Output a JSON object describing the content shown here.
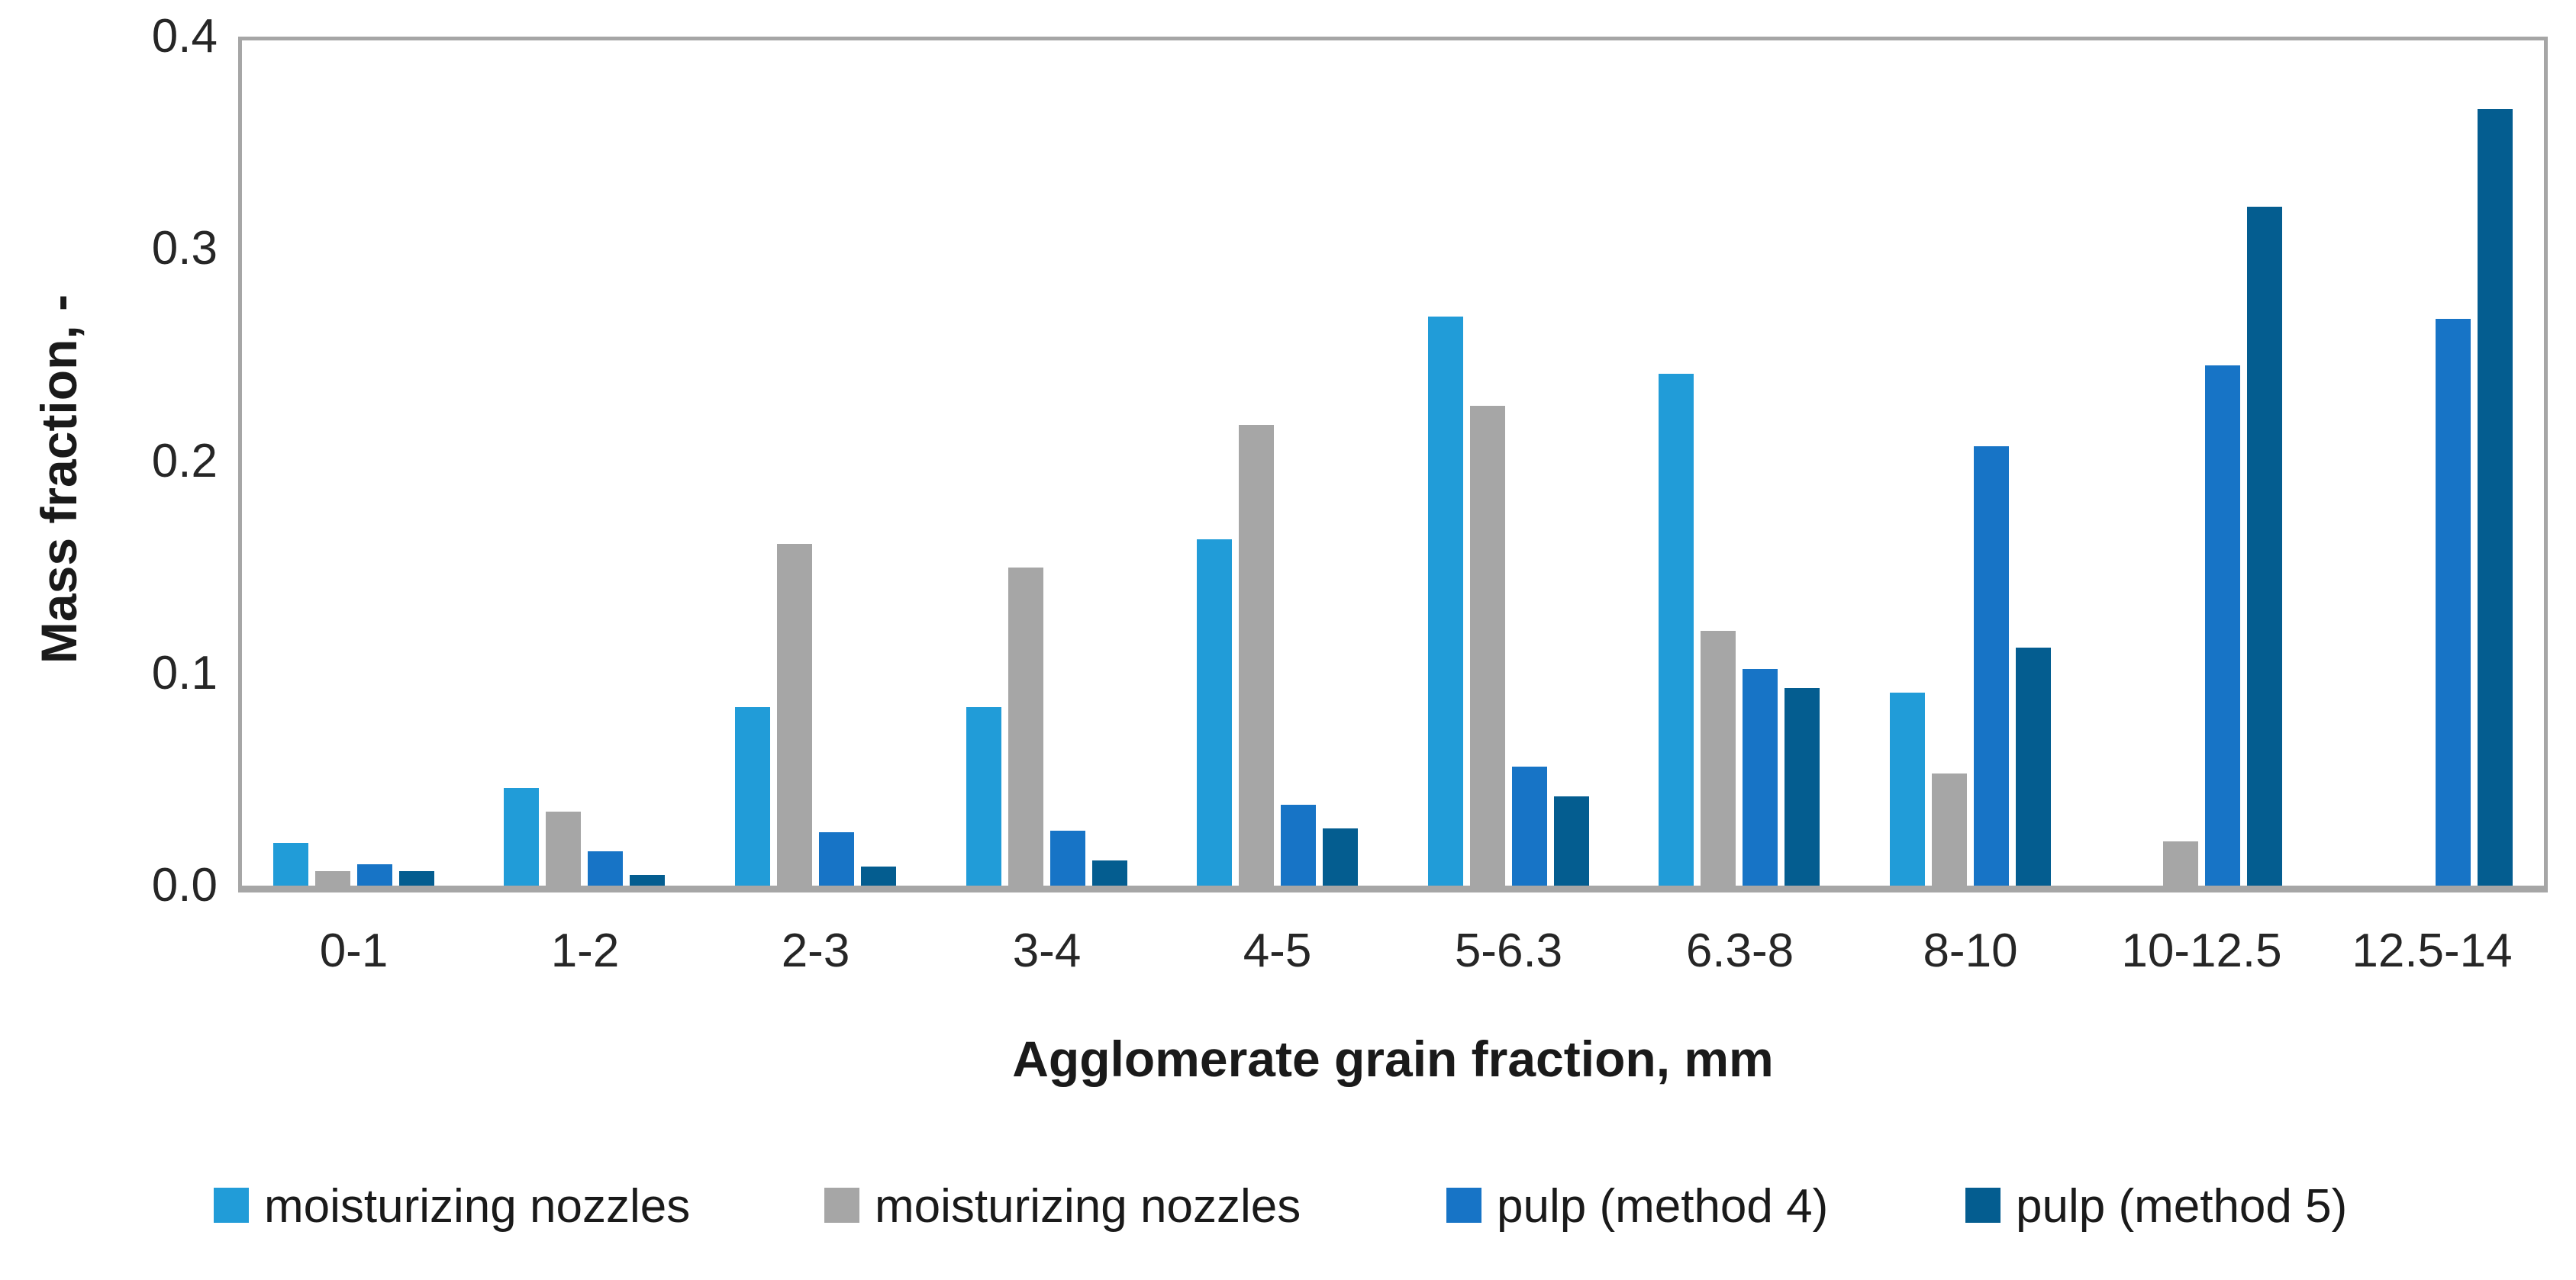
{
  "chart_data": {
    "type": "bar",
    "title": "",
    "categories": [
      "0-1",
      "1-2",
      "2-3",
      "3-4",
      "4-5",
      "5-6.3",
      "6.3-8",
      "8-10",
      "10-12.5",
      "12.5-14"
    ],
    "series": [
      {
        "name": "moisturizing nozzles",
        "color": "#219CD8",
        "values": [
          0.02,
          0.046,
          0.084,
          0.084,
          0.163,
          0.268,
          0.241,
          0.091,
          0,
          0
        ]
      },
      {
        "name": "moisturizing nozzles",
        "color": "#A6A6A6",
        "values": [
          0.007,
          0.035,
          0.161,
          0.15,
          0.217,
          0.226,
          0.12,
          0.053,
          0.021,
          0
        ]
      },
      {
        "name": "pulp (method 4)",
        "color": "#1774C6",
        "values": [
          0.01,
          0.016,
          0.025,
          0.026,
          0.038,
          0.056,
          0.102,
          0.207,
          0.245,
          0.267
        ]
      },
      {
        "name": "pulp (method 5)",
        "color": "#045D90",
        "values": [
          0.007,
          0.005,
          0.009,
          0.012,
          0.027,
          0.042,
          0.093,
          0.112,
          0.32,
          0.366
        ]
      }
    ],
    "xlabel": "Agglomerate grain fraction, mm",
    "ylabel": "Mass fraction, -",
    "ylim": [
      0,
      0.4
    ],
    "yticks": [
      "0.0",
      "0.1",
      "0.2",
      "0.3",
      "0.4"
    ],
    "grid": false,
    "legend_position": "bottom",
    "axis_color": "#A6A6A6",
    "plot_background": "#FFFFFF"
  }
}
